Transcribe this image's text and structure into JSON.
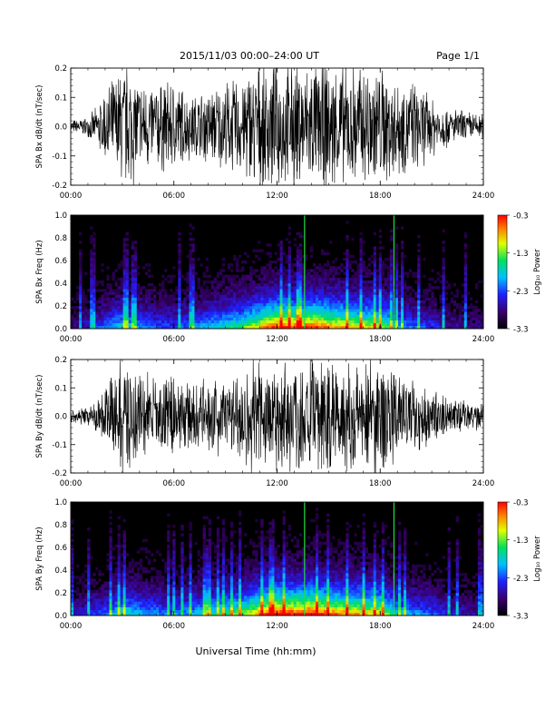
{
  "header": {
    "title": "2015/11/03  00:00–24:00 UT",
    "page": "Page 1/1"
  },
  "footer": {
    "xlabel": "Universal Time (hh:mm)"
  },
  "colorbar": {
    "label": "Log₁₀ Power",
    "ticks": [
      "-0.3",
      "-1.3",
      "-2.3",
      "-3.3"
    ],
    "range": [
      -3.3,
      -0.3
    ],
    "colormap": "rainbow"
  },
  "colors": {
    "trace": "#000000",
    "background": "#000000",
    "line": "#22dd44"
  },
  "chart_data": [
    {
      "type": "line",
      "ylabel": "SPA Bx dB/dt (nT/sec)",
      "x_ticks": [
        "00:00",
        "06:00",
        "12:00",
        "18:00",
        "24:00"
      ],
      "y_ticks": [
        "0.2",
        "0.1",
        "0.0",
        "-0.1",
        "-0.2"
      ],
      "xlim": [
        0,
        24
      ],
      "ylim": [
        -0.2,
        0.2
      ],
      "series": [
        {
          "x": [
            0,
            1,
            1.5,
            2,
            2.5,
            3,
            3.5,
            4,
            5,
            6,
            7,
            8,
            9,
            10,
            10.5,
            11,
            12,
            13,
            14,
            15,
            16,
            17,
            18,
            19,
            20,
            21,
            22,
            23,
            24
          ],
          "envelope": [
            0.02,
            0.03,
            0.06,
            0.12,
            0.15,
            0.2,
            0.2,
            0.15,
            0.14,
            0.15,
            0.1,
            0.12,
            0.14,
            0.16,
            0.2,
            0.2,
            0.2,
            0.2,
            0.2,
            0.2,
            0.2,
            0.2,
            0.2,
            0.16,
            0.14,
            0.1,
            0.06,
            0.05,
            0.04
          ]
        }
      ]
    },
    {
      "type": "heatmap",
      "ylabel": "SPA Bx Freq (Hz)",
      "x_ticks": [
        "00:00",
        "06:00",
        "12:00",
        "18:00",
        "24:00"
      ],
      "y_ticks": [
        "1.0",
        "0.8",
        "0.6",
        "0.4",
        "0.2",
        "0.0"
      ],
      "xlim": [
        0,
        24
      ],
      "ylim": [
        0,
        1
      ],
      "activity": {
        "x": [
          0,
          2,
          3,
          4,
          6,
          8,
          10,
          11,
          12,
          13,
          14,
          15,
          16,
          17,
          18,
          19,
          20,
          21,
          22,
          24
        ],
        "level": [
          0.15,
          0.35,
          0.5,
          0.4,
          0.3,
          0.45,
          0.6,
          0.8,
          0.95,
          0.9,
          0.95,
          0.85,
          0.8,
          0.75,
          0.7,
          0.45,
          0.35,
          0.3,
          0.2,
          0.15
        ]
      },
      "lines_x": [
        13.6,
        18.8
      ]
    },
    {
      "type": "line",
      "ylabel": "SPA By dB/dt (nT/sec)",
      "x_ticks": [
        "00:00",
        "06:00",
        "12:00",
        "18:00",
        "24:00"
      ],
      "y_ticks": [
        "0.2",
        "0.1",
        "0.0",
        "-0.1",
        "-0.2"
      ],
      "xlim": [
        0,
        24
      ],
      "ylim": [
        -0.2,
        0.2
      ],
      "series": [
        {
          "x": [
            0,
            1,
            1.5,
            2,
            2.5,
            3,
            3.5,
            4,
            5,
            6,
            7,
            8,
            9,
            10,
            10.5,
            11,
            12,
            13,
            14,
            15,
            16,
            17,
            18,
            19,
            20,
            21,
            22,
            23,
            24
          ],
          "envelope": [
            0.02,
            0.03,
            0.05,
            0.1,
            0.14,
            0.2,
            0.2,
            0.16,
            0.13,
            0.14,
            0.1,
            0.12,
            0.13,
            0.16,
            0.2,
            0.2,
            0.2,
            0.2,
            0.2,
            0.2,
            0.2,
            0.2,
            0.2,
            0.15,
            0.12,
            0.09,
            0.06,
            0.05,
            0.04
          ]
        }
      ]
    },
    {
      "type": "heatmap",
      "ylabel": "SPA By Freq (Hz)",
      "x_ticks": [
        "00:00",
        "06:00",
        "12:00",
        "18:00",
        "24:00"
      ],
      "y_ticks": [
        "1.0",
        "0.8",
        "0.6",
        "0.4",
        "0.2",
        "0.0"
      ],
      "xlim": [
        0,
        24
      ],
      "ylim": [
        0,
        1
      ],
      "activity": {
        "x": [
          0,
          2,
          3,
          4,
          6,
          8,
          10,
          11,
          12,
          13,
          14,
          15,
          16,
          17,
          18,
          19,
          20,
          21,
          22,
          24
        ],
        "level": [
          0.2,
          0.35,
          0.55,
          0.45,
          0.35,
          0.5,
          0.65,
          0.85,
          1.0,
          0.95,
          1.0,
          0.9,
          0.85,
          0.8,
          0.75,
          0.5,
          0.4,
          0.35,
          0.25,
          0.2
        ]
      },
      "lines_x": [
        13.6,
        18.8
      ]
    }
  ]
}
